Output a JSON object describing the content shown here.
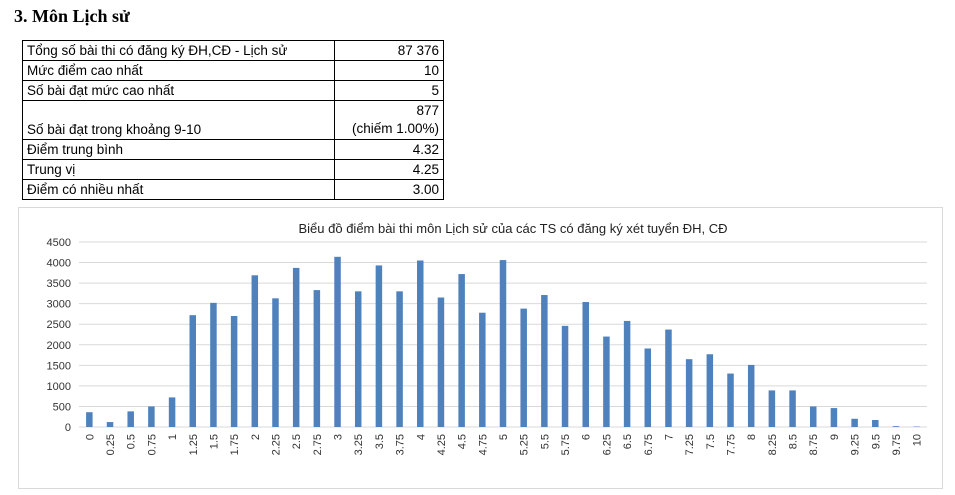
{
  "heading": "3. Môn Lịch sử",
  "stats": [
    {
      "label": "Tổng số bài thi có đăng ký ĐH,CĐ - Lịch sử",
      "value": [
        "87 376"
      ]
    },
    {
      "label": "Mức điểm cao nhất",
      "value": [
        "10"
      ]
    },
    {
      "label": "Số bài đạt mức cao nhất",
      "value": [
        "5"
      ]
    },
    {
      "label": "Số bài đạt trong khoảng 9-10",
      "value": [
        "877",
        "(chiếm 1.00%)"
      ]
    },
    {
      "label": "Điểm trung bình",
      "value": [
        "4.32"
      ]
    },
    {
      "label": "Trung vị",
      "value": [
        "4.25"
      ]
    },
    {
      "label": "Điểm có nhiều nhất",
      "value": [
        "3.00"
      ]
    }
  ],
  "chart_data": {
    "type": "bar",
    "title": "Biểu đồ điểm bài thi môn Lịch sử của các TS có đăng ký xét tuyển ĐH, CĐ",
    "xlabel": "",
    "ylabel": "",
    "ylim": [
      0,
      4500
    ],
    "yticks": [
      0,
      500,
      1000,
      1500,
      2000,
      2500,
      3000,
      3500,
      4000,
      4500
    ],
    "grid": true,
    "bar_color": "#4f81bd",
    "categories": [
      "0",
      "0.25",
      "0.5",
      "0.75",
      "1",
      "1.25",
      "1.5",
      "1.75",
      "2",
      "2.25",
      "2.5",
      "2.75",
      "3",
      "3.25",
      "3.5",
      "3.75",
      "4",
      "4.25",
      "4.5",
      "4.75",
      "5",
      "5.25",
      "5.5",
      "5.75",
      "6",
      "6.25",
      "6.5",
      "6.75",
      "7",
      "7.25",
      "7.5",
      "7.75",
      "8",
      "8.25",
      "8.5",
      "8.75",
      "9",
      "9.25",
      "9.5",
      "9.75",
      "10"
    ],
    "values": [
      360,
      120,
      380,
      500,
      720,
      2720,
      3020,
      2700,
      3690,
      3130,
      3870,
      3330,
      4140,
      3300,
      3930,
      3300,
      4050,
      3150,
      3720,
      2780,
      4060,
      2880,
      3210,
      2460,
      3040,
      2200,
      2580,
      1910,
      2370,
      1650,
      1770,
      1300,
      1510,
      890,
      890,
      500,
      460,
      200,
      170,
      20,
      10
    ]
  }
}
